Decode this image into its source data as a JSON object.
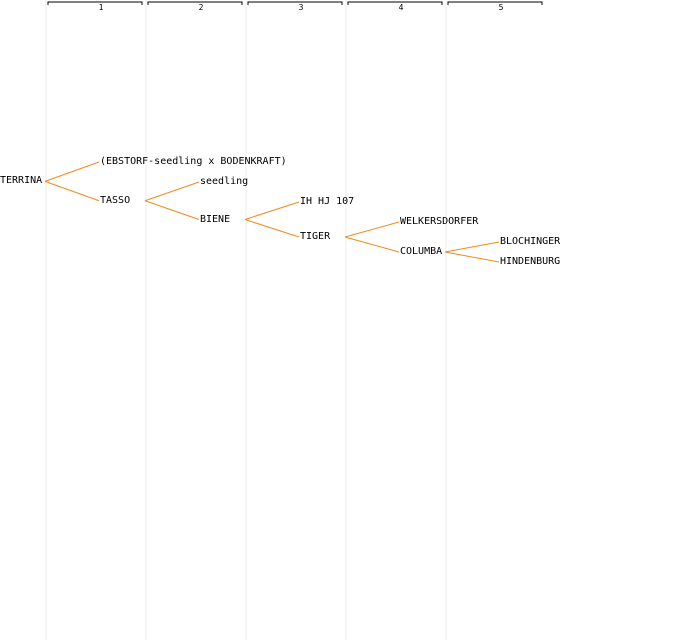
{
  "colors": {
    "edge": "#f28a1c",
    "column_line": "#ececec",
    "bracket": "#000000",
    "text": "#000000"
  },
  "generations": [
    "1",
    "2",
    "3",
    "4",
    "5"
  ],
  "tree": {
    "name": "TERRINA",
    "children": [
      {
        "name": "(EBSTORF-seedling x BODENKRAFT)"
      },
      {
        "name": "TASSO",
        "children": [
          {
            "name": "seedling"
          },
          {
            "name": "BIENE",
            "children": [
              {
                "name": "IH HJ 107"
              },
              {
                "name": "TIGER",
                "children": [
                  {
                    "name": "WELKERSDORFER"
                  },
                  {
                    "name": "COLUMBA",
                    "children": [
                      {
                        "name": "BLOCHINGER"
                      },
                      {
                        "name": "HINDENBURG"
                      }
                    ]
                  }
                ]
              }
            ]
          }
        ]
      }
    ]
  }
}
